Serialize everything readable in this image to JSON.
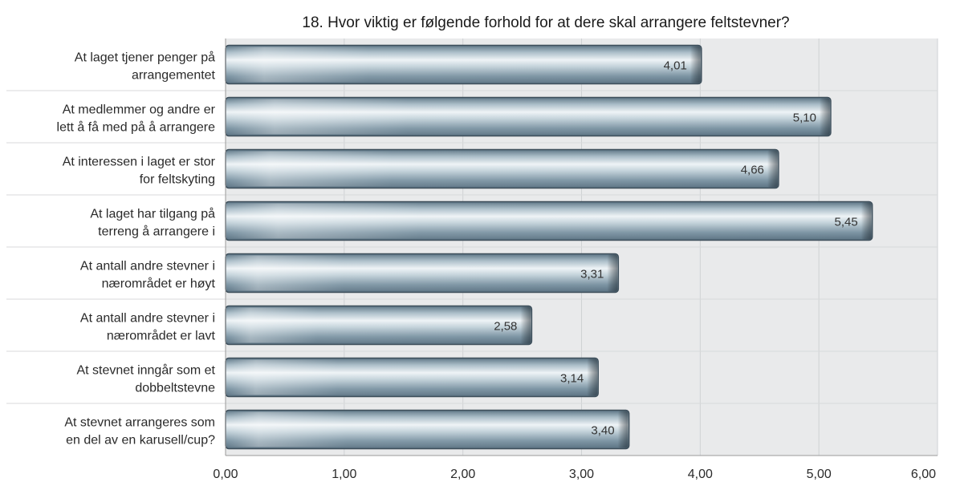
{
  "chart_data": {
    "type": "bar",
    "orientation": "horizontal",
    "title": "18. Hvor viktig er følgende forhold for at dere skal arrangere feltstevner?",
    "categories": [
      [
        "At laget tjener penger på",
        "arrangementet"
      ],
      [
        "At medlemmer og andre er",
        "lett å få med på å arrangere"
      ],
      [
        "At interessen i laget er stor",
        "for feltskyting"
      ],
      [
        "At laget har tilgang på",
        "terreng å arrangere i"
      ],
      [
        "At antall andre stevner i",
        "nærområdet er høyt"
      ],
      [
        "At antall andre stevner i",
        "nærområdet er lavt"
      ],
      [
        "At stevnet inngår som et",
        "dobbeltstevne"
      ],
      [
        "At stevnet arrangeres som",
        "en del av en karusell/cup?"
      ]
    ],
    "values": [
      4.01,
      5.1,
      4.66,
      5.45,
      3.31,
      2.58,
      3.14,
      3.4
    ],
    "value_labels": [
      "4,01",
      "5,10",
      "4,66",
      "5,45",
      "3,31",
      "2,58",
      "3,14",
      "3,40"
    ],
    "xlim": [
      0,
      6
    ],
    "x_ticks": [
      0,
      1,
      2,
      3,
      4,
      5,
      6
    ],
    "x_tick_labels": [
      "0,00",
      "1,00",
      "2,00",
      "3,00",
      "4,00",
      "5,00",
      "6,00"
    ],
    "grid": true,
    "legend": "none",
    "colors": {
      "bar_base": "#6e8797",
      "bar_light": "#e8eff3",
      "bar_border": "#3e4f5b",
      "plot_bg": "#e9eaeb",
      "grid": "#cfd2d4"
    }
  }
}
